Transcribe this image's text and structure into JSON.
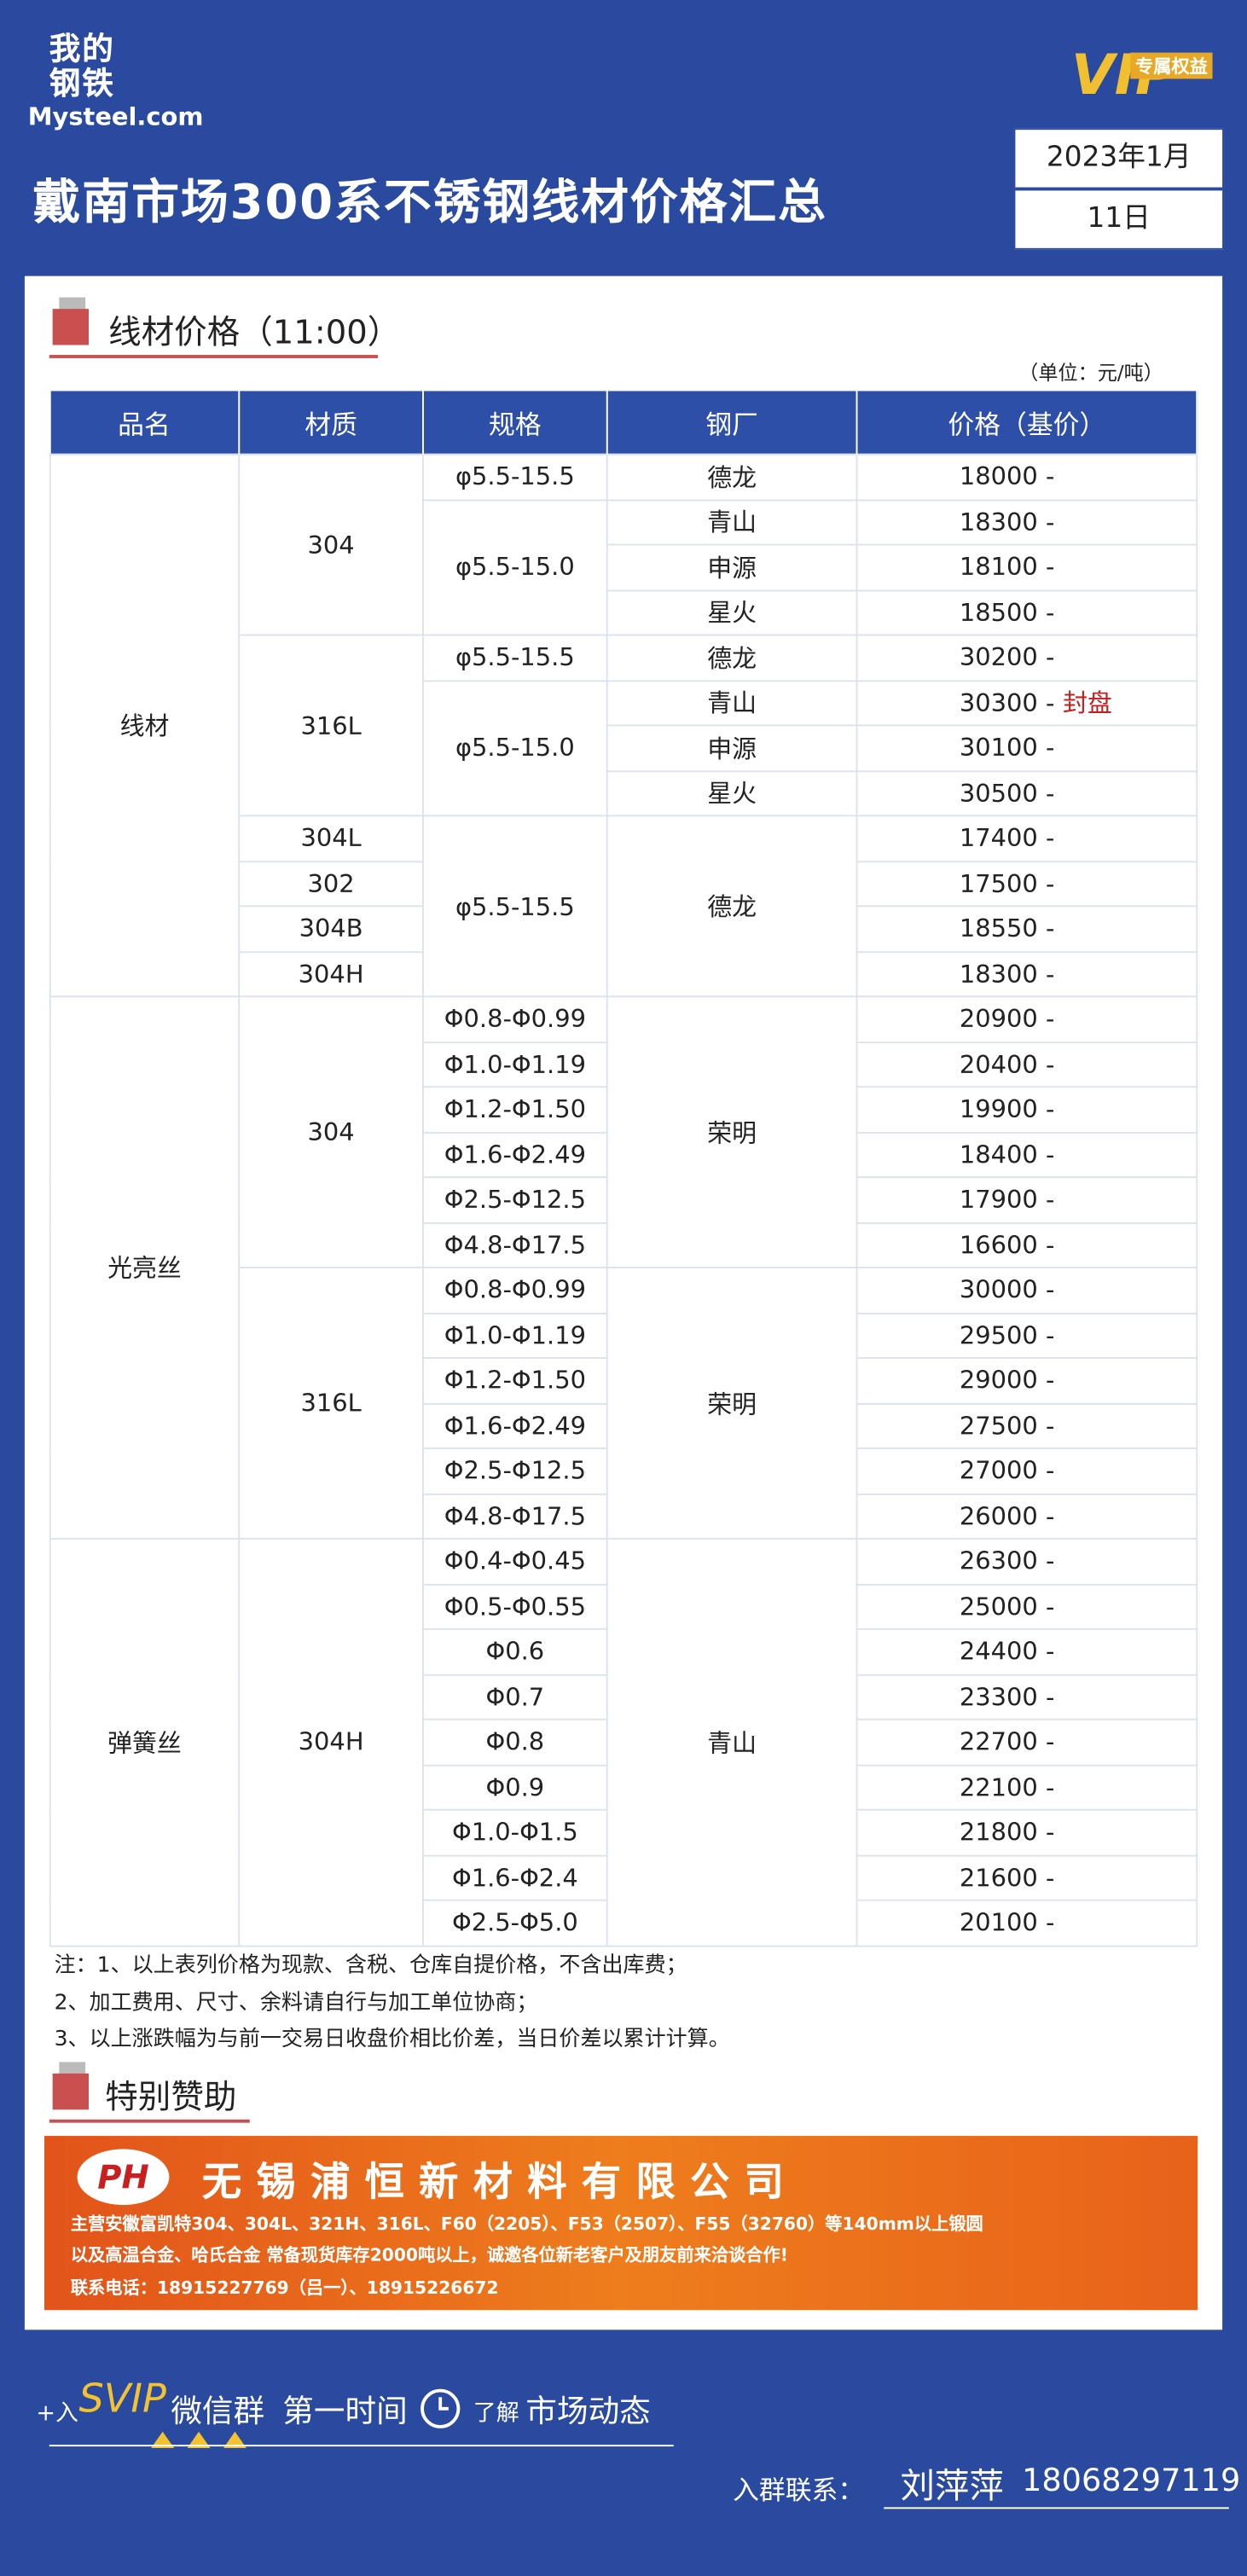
{
  "header": {
    "logo_cn": "我的钢铁",
    "logo_en": "Mysteel.com",
    "title": "戴南市场300系不锈钢线材价格汇总",
    "vip_badge": "专属权益",
    "vip": "VIP",
    "date_month": "2023年1月",
    "date_day": "11日"
  },
  "section_title": "线材价格（11:00）",
  "unit": "（单位：元/吨）",
  "table": {
    "headers": [
      "品名",
      "材质",
      "规格",
      "钢厂",
      "价格（基价）"
    ],
    "rows": [
      {
        "cells": [
          "线材",
          "304",
          "φ5.5-15.5",
          "德龙"
        ],
        "price": 18000,
        "change": "-"
      },
      {
        "cells": [
          null,
          null,
          "φ5.5-15.0",
          "青山"
        ],
        "price": 18300,
        "change": "-"
      },
      {
        "cells": [
          null,
          null,
          null,
          "申源"
        ],
        "price": 18100,
        "change": "-"
      },
      {
        "cells": [
          null,
          null,
          null,
          "星火"
        ],
        "price": 18500,
        "change": "-"
      },
      {
        "cells": [
          null,
          "316L",
          "φ5.5-15.5",
          "德龙"
        ],
        "price": 30200,
        "change": "-"
      },
      {
        "cells": [
          null,
          null,
          "φ5.5-15.0",
          "青山"
        ],
        "price": 30300,
        "change": "-",
        "status": "封盘"
      },
      {
        "cells": [
          null,
          null,
          null,
          "申源"
        ],
        "price": 30100,
        "change": "-"
      },
      {
        "cells": [
          null,
          null,
          null,
          "星火"
        ],
        "price": 30500,
        "change": "-"
      },
      {
        "cells": [
          null,
          "304L",
          "φ5.5-15.5",
          "德龙"
        ],
        "price": 17400,
        "change": "-"
      },
      {
        "cells": [
          null,
          "302",
          null,
          null
        ],
        "price": 17500,
        "change": "-"
      },
      {
        "cells": [
          null,
          "304B",
          null,
          null
        ],
        "price": 18550,
        "change": "-"
      },
      {
        "cells": [
          null,
          "304H",
          null,
          null
        ],
        "price": 18300,
        "change": "-"
      },
      {
        "cells": [
          "光亮丝",
          "304",
          "Φ0.8-Φ0.99",
          "荣明"
        ],
        "price": 20900,
        "change": "-"
      },
      {
        "cells": [
          null,
          null,
          "Φ1.0-Φ1.19",
          null
        ],
        "price": 20400,
        "change": "-"
      },
      {
        "cells": [
          null,
          null,
          "Φ1.2-Φ1.50",
          null
        ],
        "price": 19900,
        "change": "-"
      },
      {
        "cells": [
          null,
          null,
          "Φ1.6-Φ2.49",
          null
        ],
        "price": 18400,
        "change": "-"
      },
      {
        "cells": [
          null,
          null,
          "Φ2.5-Φ12.5",
          null
        ],
        "price": 17900,
        "change": "-"
      },
      {
        "cells": [
          null,
          null,
          "Φ4.8-Φ17.5",
          null
        ],
        "price": 16600,
        "change": "-"
      },
      {
        "cells": [
          null,
          "316L",
          "Φ0.8-Φ0.99",
          "荣明"
        ],
        "price": 30000,
        "change": "-"
      },
      {
        "cells": [
          null,
          null,
          "Φ1.0-Φ1.19",
          null
        ],
        "price": 29500,
        "change": "-"
      },
      {
        "cells": [
          null,
          null,
          "Φ1.2-Φ1.50",
          null
        ],
        "price": 29000,
        "change": "-"
      },
      {
        "cells": [
          null,
          null,
          "Φ1.6-Φ2.49",
          null
        ],
        "price": 27500,
        "change": "-"
      },
      {
        "cells": [
          null,
          null,
          "Φ2.5-Φ12.5",
          null
        ],
        "price": 27000,
        "change": "-"
      },
      {
        "cells": [
          null,
          null,
          "Φ4.8-Φ17.5",
          null
        ],
        "price": 26000,
        "change": "-"
      },
      {
        "cells": [
          "弹簧丝",
          "304H",
          "Φ0.4-Φ0.45",
          "青山"
        ],
        "price": 26300,
        "change": "-"
      },
      {
        "cells": [
          null,
          null,
          "Φ0.5-Φ0.55",
          null
        ],
        "price": 25000,
        "change": "-"
      },
      {
        "cells": [
          null,
          null,
          "Φ0.6",
          null
        ],
        "price": 24400,
        "change": "-"
      },
      {
        "cells": [
          null,
          null,
          "Φ0.7",
          null
        ],
        "price": 23300,
        "change": "-"
      },
      {
        "cells": [
          null,
          null,
          "Φ0.8",
          null
        ],
        "price": 22700,
        "change": "-"
      },
      {
        "cells": [
          null,
          null,
          "Φ0.9",
          null
        ],
        "price": 22100,
        "change": "-"
      },
      {
        "cells": [
          null,
          null,
          "Φ1.0-Φ1.5",
          null
        ],
        "price": 21800,
        "change": "-"
      },
      {
        "cells": [
          null,
          null,
          "Φ1.6-Φ2.4",
          null
        ],
        "price": 21600,
        "change": "-"
      },
      {
        "cells": [
          null,
          null,
          "Φ2.5-Φ5.0",
          null
        ],
        "price": 20100,
        "change": "-"
      }
    ]
  },
  "notes": [
    "注：1、以上表列价格为现款、含税、仓库自提价格，不含出库费；",
    "2、加工费用、尺寸、余料请自行与加工单位协商；",
    "3、以上涨跌幅为与前一交易日收盘价相比价差，当日价差以累计计算。"
  ],
  "sponsor": {
    "title": "特别赞助",
    "logo": "PH",
    "company": "无锡浦恒新材料有限公司",
    "line1": "主营安徽富凯特304、304L、321H、316L、F60（2205）、F53（2507）、F55（32760）等140mm以上锻圆",
    "line2": "以及高温合金、哈氏合金 常备现货库存2000吨以上，诚邀各位新老客户及朋友前来洽谈合作!",
    "line3": "联系电话：18915227769（吕一）、18915226672"
  },
  "footer": {
    "join": "+入",
    "svip": "SVIP",
    "group": "微信群",
    "first_time": "第一时间",
    "learn": "了解",
    "market": "市场动态",
    "contact_label": "入群联系：",
    "contact_name": "刘萍萍",
    "contact_phone": "18068297119"
  }
}
